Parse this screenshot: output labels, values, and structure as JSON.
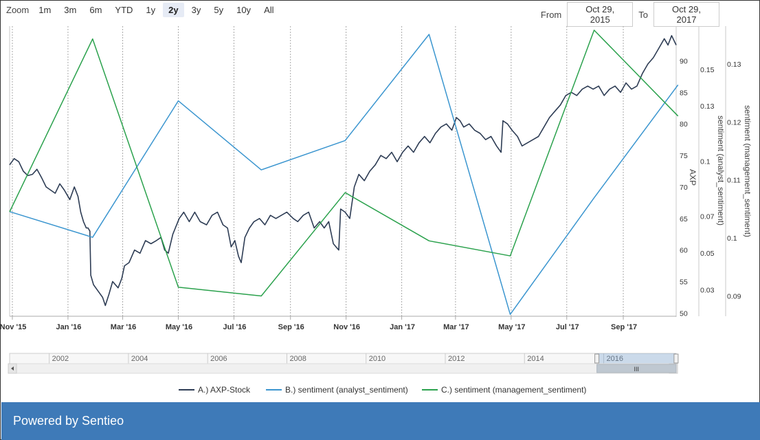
{
  "toolbar": {
    "zoom_label": "Zoom",
    "zoom_buttons": [
      "1m",
      "3m",
      "6m",
      "YTD",
      "1y",
      "2y",
      "3y",
      "5y",
      "10y",
      "All"
    ],
    "active_zoom": "2y",
    "from_label": "From",
    "from_value": "Oct 29, 2015",
    "to_label": "To",
    "to_value": "Oct 29, 2017"
  },
  "chart_data": {
    "type": "line",
    "grid": true,
    "legend_placement": "bottom",
    "x_ticks": [
      "Nov '15",
      "Jan '16",
      "Mar '16",
      "May '16",
      "Jul '16",
      "Sep '16",
      "Nov '16",
      "Jan '17",
      "Mar '17",
      "May '17",
      "Jul '17",
      "Sep '17"
    ],
    "x_tick_dates": [
      "2015-11-01",
      "2016-01-01",
      "2016-03-01",
      "2016-05-01",
      "2016-07-01",
      "2016-09-01",
      "2016-11-01",
      "2017-01-01",
      "2017-03-01",
      "2017-05-01",
      "2017-07-01",
      "2017-09-01"
    ],
    "x_range": [
      "2015-10-29",
      "2017-10-29"
    ],
    "axes": [
      {
        "id": "axp",
        "label": "AXP",
        "ticks": [
          50,
          55,
          60,
          65,
          70,
          75,
          80,
          85,
          90
        ],
        "range": [
          49.5,
          95.5
        ]
      },
      {
        "id": "analyst",
        "label": "sentiment (analyst_sentiment)",
        "ticks": [
          0.03,
          0.05,
          0.07,
          0.1,
          0.13,
          0.15
        ],
        "range": [
          0.0155,
          0.1735
        ]
      },
      {
        "id": "management",
        "label": "sentiment (management_sentiment)",
        "ticks": [
          0.09,
          0.1,
          0.11,
          0.12,
          0.13
        ],
        "range": [
          0.0865,
          0.1365
        ]
      }
    ],
    "series": [
      {
        "name": "A.) AXP-Stock",
        "axis": "axp",
        "color": "#2d3c54",
        "points": [
          [
            "2015-10-29",
            73.5
          ],
          [
            "2015-11-03",
            74.5
          ],
          [
            "2015-11-08",
            74.0
          ],
          [
            "2015-11-13",
            72.5
          ],
          [
            "2015-11-18",
            71.8
          ],
          [
            "2015-11-23",
            72.0
          ],
          [
            "2015-11-28",
            72.8
          ],
          [
            "2015-12-03",
            71.5
          ],
          [
            "2015-12-08",
            70.0
          ],
          [
            "2015-12-13",
            69.5
          ],
          [
            "2015-12-18",
            69.0
          ],
          [
            "2015-12-23",
            70.5
          ],
          [
            "2015-12-28",
            69.5
          ],
          [
            "2016-01-03",
            68.0
          ],
          [
            "2016-01-08",
            70.0
          ],
          [
            "2016-01-12",
            68.5
          ],
          [
            "2016-01-15",
            66.0
          ],
          [
            "2016-01-18",
            64.5
          ],
          [
            "2016-01-21",
            63.5
          ],
          [
            "2016-01-23",
            63.5
          ],
          [
            "2016-01-25",
            63.0
          ],
          [
            "2016-01-26",
            56.0
          ],
          [
            "2016-01-29",
            54.5
          ],
          [
            "2016-02-03",
            53.5
          ],
          [
            "2016-02-08",
            52.5
          ],
          [
            "2016-02-11",
            51.2
          ],
          [
            "2016-02-15",
            53.0
          ],
          [
            "2016-02-19",
            55.0
          ],
          [
            "2016-02-25",
            54.0
          ],
          [
            "2016-02-29",
            55.5
          ],
          [
            "2016-03-03",
            57.5
          ],
          [
            "2016-03-08",
            58.0
          ],
          [
            "2016-03-14",
            60.0
          ],
          [
            "2016-03-20",
            59.5
          ],
          [
            "2016-03-26",
            61.5
          ],
          [
            "2016-04-01",
            61.0
          ],
          [
            "2016-04-07",
            61.5
          ],
          [
            "2016-04-12",
            62.0
          ],
          [
            "2016-04-16",
            60.0
          ],
          [
            "2016-04-20",
            59.5
          ],
          [
            "2016-04-25",
            62.5
          ],
          [
            "2016-05-02",
            65.0
          ],
          [
            "2016-05-07",
            66.0
          ],
          [
            "2016-05-13",
            64.5
          ],
          [
            "2016-05-19",
            66.0
          ],
          [
            "2016-05-25",
            64.5
          ],
          [
            "2016-06-01",
            64.0
          ],
          [
            "2016-06-07",
            65.5
          ],
          [
            "2016-06-13",
            66.0
          ],
          [
            "2016-06-19",
            64.0
          ],
          [
            "2016-06-24",
            63.5
          ],
          [
            "2016-06-28",
            60.5
          ],
          [
            "2016-07-02",
            61.5
          ],
          [
            "2016-07-06",
            59.0
          ],
          [
            "2016-07-09",
            58.0
          ],
          [
            "2016-07-13",
            62.0
          ],
          [
            "2016-07-18",
            63.5
          ],
          [
            "2016-07-23",
            64.5
          ],
          [
            "2016-07-29",
            65.0
          ],
          [
            "2016-08-04",
            64.0
          ],
          [
            "2016-08-10",
            65.5
          ],
          [
            "2016-08-16",
            65.0
          ],
          [
            "2016-08-22",
            65.5
          ],
          [
            "2016-08-28",
            66.0
          ],
          [
            "2016-09-04",
            65.0
          ],
          [
            "2016-09-09",
            64.5
          ],
          [
            "2016-09-15",
            65.5
          ],
          [
            "2016-09-21",
            66.0
          ],
          [
            "2016-09-27",
            63.5
          ],
          [
            "2016-10-03",
            64.5
          ],
          [
            "2016-10-08",
            63.5
          ],
          [
            "2016-10-13",
            64.5
          ],
          [
            "2016-10-18",
            61.0
          ],
          [
            "2016-10-21",
            60.5
          ],
          [
            "2016-10-24",
            60.0
          ],
          [
            "2016-10-26",
            66.5
          ],
          [
            "2016-10-31",
            66.0
          ],
          [
            "2016-11-05",
            65.0
          ],
          [
            "2016-11-10",
            70.0
          ],
          [
            "2016-11-15",
            72.0
          ],
          [
            "2016-11-21",
            71.0
          ],
          [
            "2016-11-27",
            72.5
          ],
          [
            "2016-12-03",
            73.5
          ],
          [
            "2016-12-09",
            75.0
          ],
          [
            "2016-12-15",
            74.5
          ],
          [
            "2016-12-21",
            75.5
          ],
          [
            "2016-12-27",
            74.0
          ],
          [
            "2017-01-02",
            75.5
          ],
          [
            "2017-01-08",
            76.5
          ],
          [
            "2017-01-14",
            75.5
          ],
          [
            "2017-01-20",
            77.0
          ],
          [
            "2017-01-26",
            78.0
          ],
          [
            "2017-02-01",
            77.0
          ],
          [
            "2017-02-07",
            78.5
          ],
          [
            "2017-02-13",
            79.5
          ],
          [
            "2017-02-19",
            80.0
          ],
          [
            "2017-02-25",
            79.0
          ],
          [
            "2017-03-02",
            81.0
          ],
          [
            "2017-03-06",
            80.5
          ],
          [
            "2017-03-10",
            79.5
          ],
          [
            "2017-03-16",
            80.0
          ],
          [
            "2017-03-22",
            79.0
          ],
          [
            "2017-03-28",
            78.5
          ],
          [
            "2017-04-03",
            77.5
          ],
          [
            "2017-04-09",
            78.0
          ],
          [
            "2017-04-15",
            76.5
          ],
          [
            "2017-04-20",
            75.5
          ],
          [
            "2017-04-22",
            80.5
          ],
          [
            "2017-04-27",
            80.0
          ],
          [
            "2017-05-02",
            79.0
          ],
          [
            "2017-05-08",
            78.0
          ],
          [
            "2017-05-13",
            76.5
          ],
          [
            "2017-05-19",
            77.0
          ],
          [
            "2017-05-25",
            77.5
          ],
          [
            "2017-05-31",
            78.0
          ],
          [
            "2017-06-06",
            79.5
          ],
          [
            "2017-06-12",
            81.0
          ],
          [
            "2017-06-18",
            82.0
          ],
          [
            "2017-06-24",
            83.0
          ],
          [
            "2017-06-30",
            84.5
          ],
          [
            "2017-07-06",
            85.0
          ],
          [
            "2017-07-12",
            84.5
          ],
          [
            "2017-07-18",
            85.5
          ],
          [
            "2017-07-24",
            86.0
          ],
          [
            "2017-07-30",
            85.5
          ],
          [
            "2017-08-05",
            86.0
          ],
          [
            "2017-08-11",
            84.5
          ],
          [
            "2017-08-17",
            85.5
          ],
          [
            "2017-08-23",
            86.0
          ],
          [
            "2017-08-29",
            85.0
          ],
          [
            "2017-09-04",
            86.5
          ],
          [
            "2017-09-10",
            85.5
          ],
          [
            "2017-09-16",
            86.0
          ],
          [
            "2017-09-22",
            88.0
          ],
          [
            "2017-09-28",
            89.5
          ],
          [
            "2017-10-04",
            90.5
          ],
          [
            "2017-10-10",
            92.0
          ],
          [
            "2017-10-16",
            93.5
          ],
          [
            "2017-10-20",
            92.5
          ],
          [
            "2017-10-24",
            94.0
          ],
          [
            "2017-10-29",
            92.5
          ]
        ]
      },
      {
        "name": "B.) sentiment (analyst_sentiment)",
        "axis": "analyst",
        "color": "#3a95cf",
        "points": [
          [
            "2015-10-29",
            0.0725
          ],
          [
            "2016-01-28",
            0.0585
          ],
          [
            "2016-05-01",
            0.1328
          ],
          [
            "2016-07-31",
            0.0952
          ],
          [
            "2016-10-31",
            0.1112
          ],
          [
            "2017-01-31",
            0.169
          ],
          [
            "2017-04-30",
            0.0165
          ],
          [
            "2017-07-31",
            0.08
          ],
          [
            "2017-10-31",
            0.1415
          ]
        ]
      },
      {
        "name": "C.) sentiment (management_sentiment)",
        "axis": "management",
        "color": "#2aa14c",
        "points": [
          [
            "2015-10-29",
            0.1045
          ],
          [
            "2016-01-28",
            0.1343
          ],
          [
            "2016-05-01",
            0.0915
          ],
          [
            "2016-07-31",
            0.09
          ],
          [
            "2016-10-31",
            0.1078
          ],
          [
            "2017-01-31",
            0.0995
          ],
          [
            "2017-04-30",
            0.0969
          ],
          [
            "2017-07-31",
            0.1358
          ],
          [
            "2017-10-31",
            0.121
          ]
        ]
      }
    ]
  },
  "navigator": {
    "years": [
      "2002",
      "2004",
      "2006",
      "2008",
      "2010",
      "2012",
      "2014",
      "2016"
    ],
    "year_start": 2001,
    "year_end": 2017.83,
    "selection": [
      "2015-10-29",
      "2017-10-29"
    ],
    "handle_glyph": "III"
  },
  "legend": {
    "items": [
      "A.) AXP-Stock",
      "B.) sentiment (analyst_sentiment)",
      "C.) sentiment (management_sentiment)"
    ]
  },
  "footer": {
    "text": "Powered by Sentieo"
  }
}
